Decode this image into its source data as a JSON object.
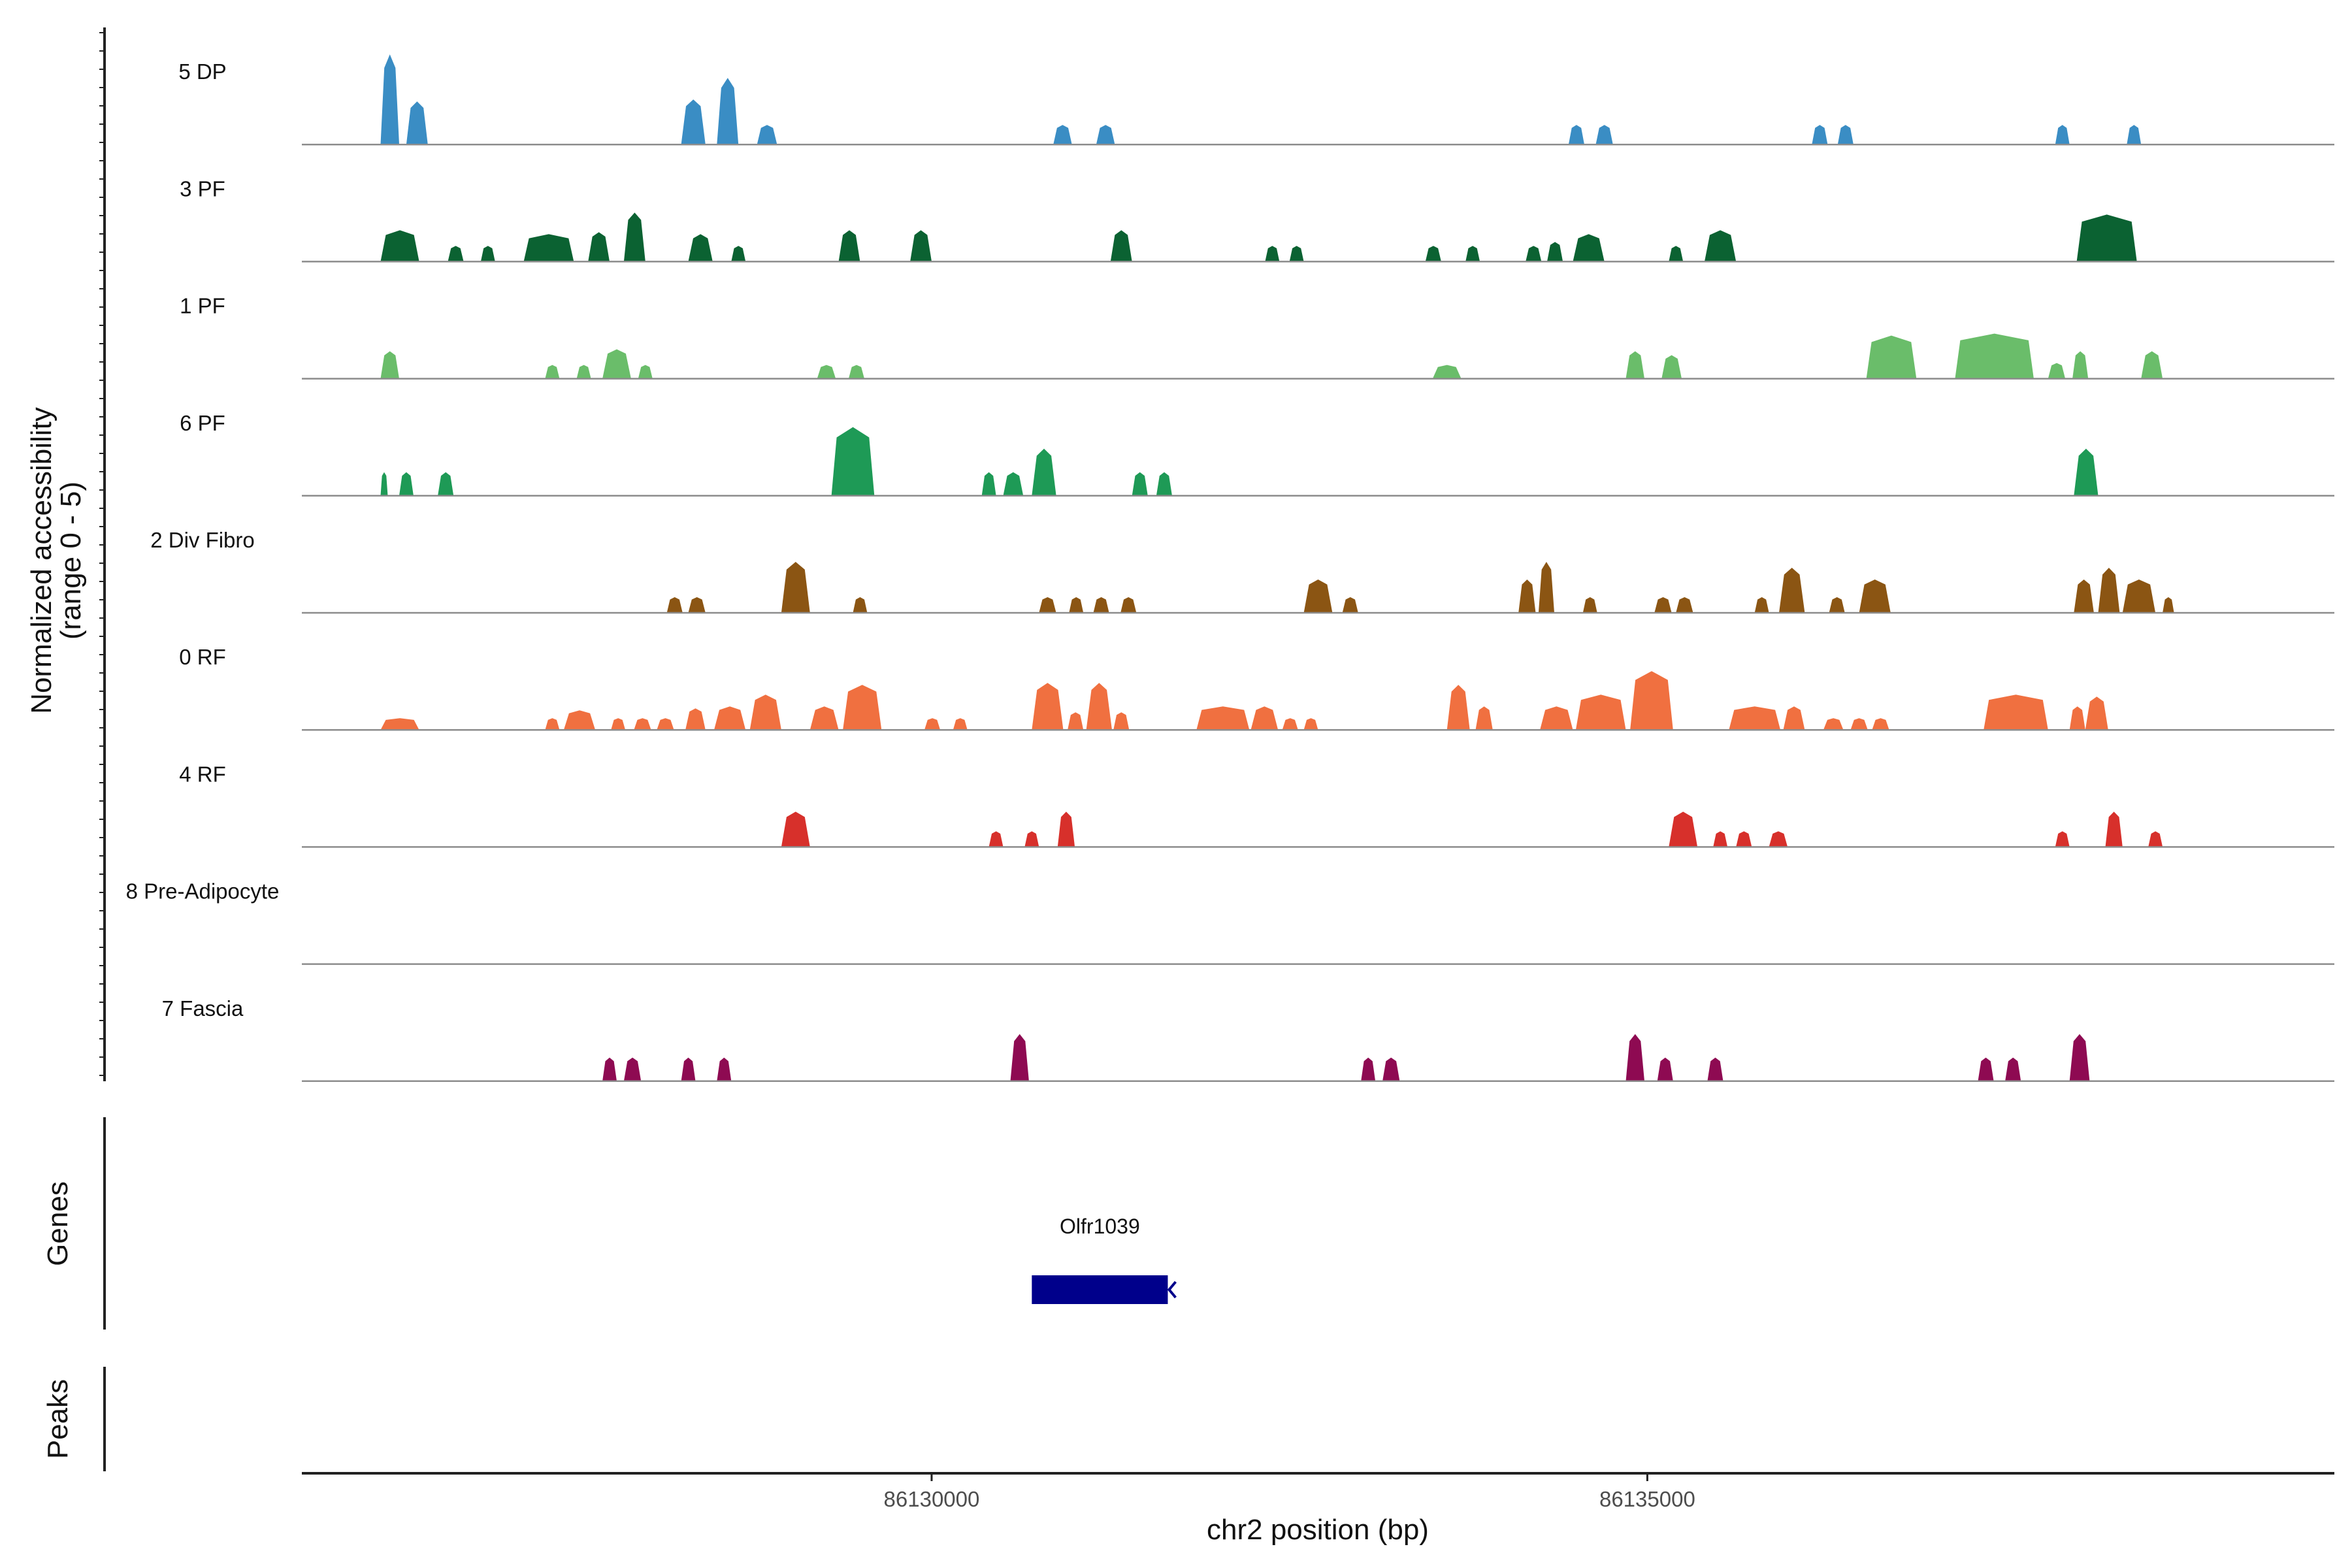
{
  "chart_data": {
    "type": "coverage",
    "title": "",
    "ylabel_line1": "Normalized accessibility",
    "ylabel_line2": "(range 0 - 5)",
    "xlabel": "chr2 position (bp)",
    "x_range": [
      86125600,
      86139800
    ],
    "x_ticks": [
      86130000,
      86135000
    ],
    "x_tick_labels": [
      "86130000",
      "86135000"
    ],
    "y_range": [
      0,
      5
    ],
    "tracks": [
      {
        "name": "5 DP",
        "color": "#3a8dc4",
        "peaks": [
          [
            86126150,
            86126280,
            4.6
          ],
          [
            86126330,
            86126480,
            2.2
          ],
          [
            86128250,
            86128420,
            2.3
          ],
          [
            86128500,
            86128650,
            3.4
          ],
          [
            86128780,
            86128920,
            1.0
          ],
          [
            86130850,
            86130980,
            1.0
          ],
          [
            86131150,
            86131280,
            1.0
          ],
          [
            86134450,
            86134560,
            1.0
          ],
          [
            86134640,
            86134760,
            1.0
          ],
          [
            86136150,
            86136260,
            1.0
          ],
          [
            86136330,
            86136440,
            1.0
          ],
          [
            86137850,
            86137950,
            1.0
          ],
          [
            86138350,
            86138450,
            1.0
          ]
        ]
      },
      {
        "name": "3 PF",
        "color": "#0b6232",
        "peaks": [
          [
            86126150,
            86126420,
            1.6
          ],
          [
            86126620,
            86126730,
            0.8
          ],
          [
            86126850,
            86126950,
            0.8
          ],
          [
            86127150,
            86127500,
            1.4
          ],
          [
            86127600,
            86127750,
            1.5
          ],
          [
            86127850,
            86128000,
            2.5
          ],
          [
            86128300,
            86128470,
            1.4
          ],
          [
            86128600,
            86128700,
            0.8
          ],
          [
            86129350,
            86129500,
            1.6
          ],
          [
            86129850,
            86130000,
            1.6
          ],
          [
            86131250,
            86131400,
            1.6
          ],
          [
            86132330,
            86132430,
            0.8
          ],
          [
            86132500,
            86132600,
            0.8
          ],
          [
            86133450,
            86133560,
            0.8
          ],
          [
            86133730,
            86133830,
            0.8
          ],
          [
            86134150,
            86134260,
            0.8
          ],
          [
            86134300,
            86134410,
            1.0
          ],
          [
            86134480,
            86134700,
            1.4
          ],
          [
            86135150,
            86135250,
            0.8
          ],
          [
            86135400,
            86135620,
            1.6
          ],
          [
            86138000,
            86138420,
            2.4
          ]
        ]
      },
      {
        "name": "1 PF",
        "color": "#6abd6a",
        "peaks": [
          [
            86126150,
            86126280,
            1.4
          ],
          [
            86127300,
            86127400,
            0.7
          ],
          [
            86127520,
            86127620,
            0.7
          ],
          [
            86127700,
            86127900,
            1.5
          ],
          [
            86127950,
            86128050,
            0.7
          ],
          [
            86129200,
            86129330,
            0.7
          ],
          [
            86129420,
            86129530,
            0.7
          ],
          [
            86133500,
            86133700,
            0.7
          ],
          [
            86134850,
            86134980,
            1.4
          ],
          [
            86135100,
            86135240,
            1.2
          ],
          [
            86136530,
            86136880,
            2.2
          ],
          [
            86137150,
            86137700,
            2.3
          ],
          [
            86137800,
            86137920,
            0.8
          ],
          [
            86137970,
            86138080,
            1.4
          ],
          [
            86138450,
            86138600,
            1.4
          ]
        ]
      },
      {
        "name": "6 PF",
        "color": "#1e9a56",
        "peaks": [
          [
            86126150,
            86126200,
            1.2
          ],
          [
            86126280,
            86126380,
            1.2
          ],
          [
            86126550,
            86126660,
            1.2
          ],
          [
            86129300,
            86129600,
            3.5
          ],
          [
            86130350,
            86130450,
            1.2
          ],
          [
            86130500,
            86130640,
            1.2
          ],
          [
            86130700,
            86130870,
            2.4
          ],
          [
            86131400,
            86131510,
            1.2
          ],
          [
            86131570,
            86131680,
            1.2
          ],
          [
            86137980,
            86138150,
            2.4
          ]
        ]
      },
      {
        "name": "2 Div Fibro",
        "color": "#8b5513",
        "peaks": [
          [
            86128150,
            86128260,
            0.8
          ],
          [
            86128300,
            86128420,
            0.8
          ],
          [
            86128950,
            86129150,
            2.6
          ],
          [
            86129450,
            86129550,
            0.8
          ],
          [
            86130750,
            86130870,
            0.8
          ],
          [
            86130960,
            86131060,
            0.8
          ],
          [
            86131130,
            86131240,
            0.8
          ],
          [
            86131320,
            86131430,
            0.8
          ],
          [
            86132600,
            86132800,
            1.7
          ],
          [
            86132870,
            86132980,
            0.8
          ],
          [
            86134100,
            86134220,
            1.7
          ],
          [
            86134240,
            86134350,
            2.6
          ],
          [
            86134550,
            86134650,
            0.8
          ],
          [
            86135050,
            86135170,
            0.8
          ],
          [
            86135200,
            86135320,
            0.8
          ],
          [
            86135750,
            86135850,
            0.8
          ],
          [
            86135920,
            86136100,
            2.3
          ],
          [
            86136270,
            86136380,
            0.8
          ],
          [
            86136480,
            86136700,
            1.7
          ],
          [
            86137980,
            86138120,
            1.7
          ],
          [
            86138150,
            86138300,
            2.3
          ],
          [
            86138320,
            86138550,
            1.7
          ],
          [
            86138600,
            86138680,
            0.8
          ]
        ]
      },
      {
        "name": "0 RF",
        "color": "#f07040",
        "peaks": [
          [
            86126150,
            86126420,
            0.6
          ],
          [
            86127300,
            86127400,
            0.6
          ],
          [
            86127430,
            86127650,
            1.0
          ],
          [
            86127760,
            86127860,
            0.6
          ],
          [
            86127920,
            86128040,
            0.6
          ],
          [
            86128080,
            86128200,
            0.6
          ],
          [
            86128280,
            86128420,
            1.1
          ],
          [
            86128480,
            86128700,
            1.2
          ],
          [
            86128730,
            86128950,
            1.8
          ],
          [
            86129150,
            86129350,
            1.2
          ],
          [
            86129380,
            86129650,
            2.3
          ],
          [
            86129950,
            86130060,
            0.6
          ],
          [
            86130150,
            86130250,
            0.6
          ],
          [
            86130700,
            86130920,
            2.4
          ],
          [
            86130950,
            86131060,
            0.9
          ],
          [
            86131080,
            86131260,
            2.4
          ],
          [
            86131270,
            86131380,
            0.9
          ],
          [
            86131850,
            86132220,
            1.2
          ],
          [
            86132230,
            86132420,
            1.2
          ],
          [
            86132450,
            86132560,
            0.6
          ],
          [
            86132600,
            86132700,
            0.6
          ],
          [
            86133600,
            86133760,
            2.3
          ],
          [
            86133800,
            86133920,
            1.2
          ],
          [
            86134250,
            86134480,
            1.2
          ],
          [
            86134500,
            86134850,
            1.8
          ],
          [
            86134880,
            86135180,
            3.0
          ],
          [
            86135570,
            86135930,
            1.2
          ],
          [
            86135950,
            86136100,
            1.2
          ],
          [
            86136230,
            86136370,
            0.6
          ],
          [
            86136420,
            86136540,
            0.6
          ],
          [
            86136570,
            86136690,
            0.6
          ],
          [
            86137350,
            86137800,
            1.8
          ],
          [
            86137950,
            86138060,
            1.2
          ],
          [
            86138060,
            86138220,
            1.7
          ]
        ]
      },
      {
        "name": "4 RF",
        "color": "#d7302b",
        "peaks": [
          [
            86128950,
            86129150,
            1.8
          ],
          [
            86130400,
            86130500,
            0.8
          ],
          [
            86130650,
            86130750,
            0.8
          ],
          [
            86130880,
            86131000,
            1.8
          ],
          [
            86135150,
            86135350,
            1.8
          ],
          [
            86135460,
            86135560,
            0.8
          ],
          [
            86135620,
            86135730,
            0.8
          ],
          [
            86135850,
            86135980,
            0.8
          ],
          [
            86137850,
            86137950,
            0.8
          ],
          [
            86138200,
            86138320,
            1.8
          ],
          [
            86138500,
            86138600,
            0.8
          ]
        ]
      },
      {
        "name": "8 Pre-Adipocyte",
        "color": "#7a7a7a",
        "peaks": []
      },
      {
        "name": "7 Fascia",
        "color": "#8e0a52",
        "peaks": [
          [
            86127700,
            86127800,
            1.2
          ],
          [
            86127850,
            86127970,
            1.2
          ],
          [
            86128250,
            86128350,
            1.2
          ],
          [
            86128500,
            86128600,
            1.2
          ],
          [
            86130550,
            86130680,
            2.4
          ],
          [
            86133000,
            86133100,
            1.2
          ],
          [
            86133150,
            86133270,
            1.2
          ],
          [
            86134850,
            86134980,
            2.4
          ],
          [
            86135070,
            86135180,
            1.2
          ],
          [
            86135420,
            86135530,
            1.2
          ],
          [
            86137310,
            86137420,
            1.2
          ],
          [
            86137500,
            86137610,
            1.2
          ],
          [
            86137950,
            86138090,
            2.4
          ]
        ]
      }
    ],
    "genes": [
      {
        "name": "Olfr1039",
        "start": 86130700,
        "end": 86131650,
        "strand": "-",
        "color": "#00008b"
      }
    ],
    "panels": {
      "genes_label": "Genes",
      "peaks_label": "Peaks"
    }
  }
}
